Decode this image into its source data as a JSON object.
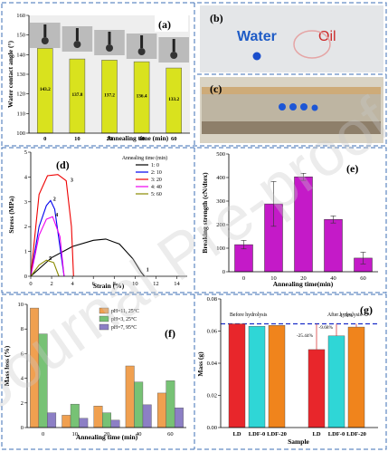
{
  "watermark": "Journal Pre-proof",
  "panels": {
    "a": "(a)",
    "b": "(b)",
    "c": "(c)",
    "d": "(d)",
    "e": "(e)",
    "f": "(f)",
    "g": "(g)"
  },
  "photo_b": {
    "water_label": "Water",
    "oil_label": "Oil"
  },
  "colors": {
    "frame": "#3d6fb5",
    "yellow": "#d9e21e",
    "magenta": "#c41ac8"
  },
  "chart_data": [
    {
      "id": "a",
      "type": "bar",
      "categories": [
        "0",
        "10",
        "20",
        "40",
        "60"
      ],
      "values": [
        143.2,
        137.8,
        137.2,
        136.4,
        133.2
      ],
      "value_labels": [
        "143.2",
        "137.8",
        "137.2",
        "136.4",
        "133.2"
      ],
      "xlabel": "Annealing time (min)",
      "ylabel": "Water contact angle (°)",
      "ylim": [
        100,
        160
      ],
      "yticks": [
        100,
        110,
        120,
        130,
        140,
        150,
        160
      ]
    },
    {
      "id": "d",
      "type": "line",
      "xlabel": "Strain (%)",
      "ylabel": "Stress (MPa)",
      "xlim": [
        0,
        15
      ],
      "ylim": [
        0,
        5
      ],
      "xticks": [
        0,
        2,
        4,
        6,
        8,
        10,
        12,
        14
      ],
      "yticks": [
        0,
        1,
        2,
        3,
        4,
        5
      ],
      "legend_title": "Annealing time (min)",
      "legend_position": "top-right",
      "series": [
        {
          "name": "1: 0",
          "label": "1",
          "color": "#000000",
          "x": [
            0,
            2,
            4,
            6,
            7.2,
            8.5,
            9.8,
            10.6,
            10.9
          ],
          "y": [
            0,
            0.75,
            1.2,
            1.45,
            1.5,
            1.3,
            0.7,
            0.15,
            0
          ]
        },
        {
          "name": "2: 10",
          "label": "2",
          "color": "#0000ee",
          "x": [
            0,
            0.8,
            1.5,
            1.9,
            2.3,
            2.9,
            3.2
          ],
          "y": [
            0,
            2.0,
            2.85,
            3.05,
            2.7,
            0.9,
            0
          ]
        },
        {
          "name": "3: 20",
          "label": "3",
          "color": "#ee0000",
          "x": [
            0,
            0.8,
            1.6,
            2.6,
            3.4,
            3.9,
            4.1
          ],
          "y": [
            0,
            3.3,
            4.05,
            4.1,
            3.85,
            2.0,
            0
          ]
        },
        {
          "name": "4: 40",
          "label": "4",
          "color": "#ee00ee",
          "x": [
            0,
            0.8,
            1.5,
            2.1,
            2.8,
            3.2
          ],
          "y": [
            0,
            1.65,
            2.3,
            2.4,
            1.6,
            0
          ]
        },
        {
          "name": "5: 60",
          "label": "5",
          "color": "#8a8a00",
          "x": [
            0,
            0.8,
            1.5,
            2.2,
            2.7
          ],
          "y": [
            0,
            0.45,
            0.65,
            0.55,
            0
          ]
        }
      ]
    },
    {
      "id": "e",
      "type": "bar",
      "categories": [
        "0",
        "10",
        "20",
        "40",
        "60"
      ],
      "values": [
        115,
        288,
        403,
        222,
        58
      ],
      "errors": [
        18,
        95,
        15,
        15,
        25
      ],
      "xlabel": "Annealing time(min)",
      "ylabel": "Breaking strength (cN/dtex)",
      "ylim": [
        0,
        500
      ],
      "yticks": [
        0,
        100,
        200,
        300,
        400,
        500
      ]
    },
    {
      "id": "f",
      "type": "bar",
      "categories": [
        "0",
        "10",
        "20",
        "40",
        "60"
      ],
      "xlabel": "Annealing time (min)",
      "ylabel": "Mass loss (%)",
      "ylim": [
        0,
        10
      ],
      "yticks": [
        0,
        2,
        4,
        6,
        8,
        10
      ],
      "legend_position": "top-right",
      "series": [
        {
          "name": "pH=11, 25°C",
          "color": "#f0a050",
          "values": [
            9.7,
            1.0,
            1.75,
            5.0,
            2.8
          ]
        },
        {
          "name": "pH=3, 25°C",
          "color": "#77c275",
          "values": [
            7.6,
            1.9,
            1.2,
            3.7,
            3.8
          ]
        },
        {
          "name": "pH=7, 95°C",
          "color": "#8c7fc5",
          "values": [
            1.2,
            0.75,
            0.6,
            1.85,
            1.6
          ]
        }
      ]
    },
    {
      "id": "g",
      "type": "bar",
      "categories": [
        "LD",
        "LDF-0",
        "LDF-20",
        "LD",
        "LDF-0",
        "LDF-20"
      ],
      "values": [
        0.0645,
        0.063,
        0.0635,
        0.0485,
        0.057,
        0.0625
      ],
      "colors": [
        "#e8262b",
        "#2fd6d6",
        "#f0841c",
        "#e8262b",
        "#2fd6d6",
        "#f0841c"
      ],
      "xlabel": "Sample",
      "ylabel": "Mass (g)",
      "ylim": [
        0,
        0.08
      ],
      "yticks": [
        "0.00",
        "0.02",
        "0.04",
        "0.06",
        "0.08"
      ],
      "annotations": {
        "before": "Before hydrolysis",
        "after": "After hydrolysis",
        "drops": [
          "-25.44%",
          "-9.68%",
          "-1.74%"
        ]
      }
    }
  ]
}
